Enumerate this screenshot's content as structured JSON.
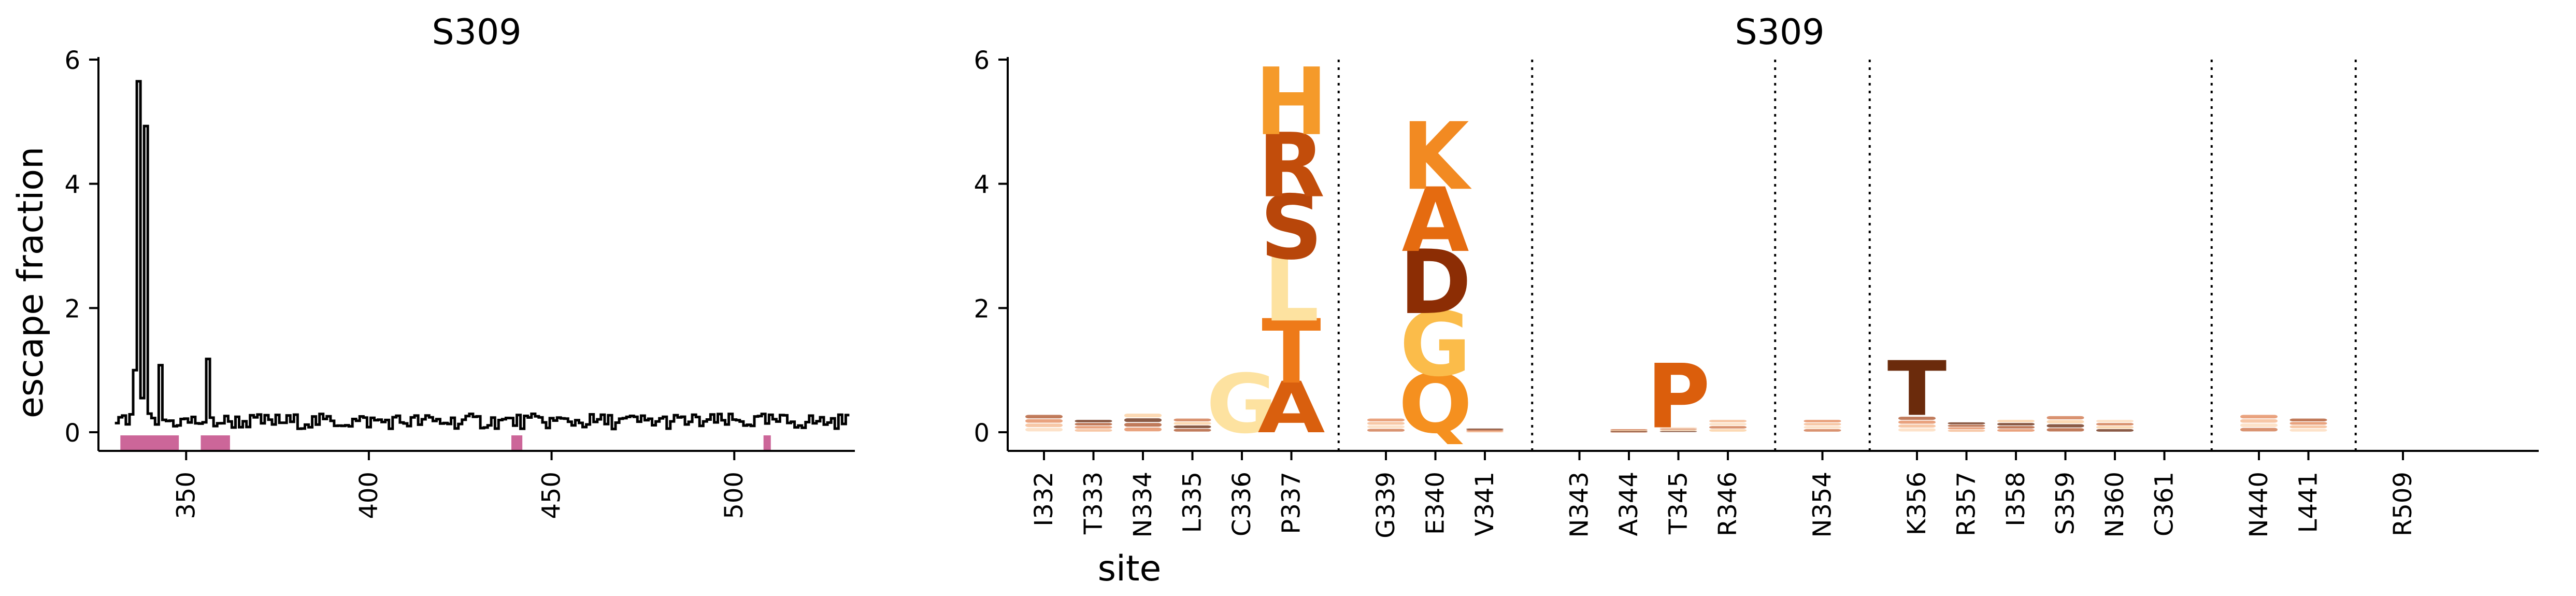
{
  "chart_data": [
    {
      "type": "line",
      "title": "S309",
      "xlabel": "",
      "ylabel": "escape fraction",
      "xlim": [
        326,
        533
      ],
      "ylim": [
        -0.3,
        6
      ],
      "xticks": [
        350,
        400,
        450,
        500
      ],
      "yticks": [
        0,
        2,
        4,
        6
      ],
      "grid": false,
      "peaks": [
        {
          "x": 336,
          "y": 1.0
        },
        {
          "x": 337,
          "y": 5.65
        },
        {
          "x": 338,
          "y": 0.55
        },
        {
          "x": 339,
          "y": 4.93
        },
        {
          "x": 340,
          "y": 0.3
        },
        {
          "x": 343,
          "y": 1.08
        },
        {
          "x": 344,
          "y": 0.2
        },
        {
          "x": 356,
          "y": 1.18
        }
      ],
      "baseline_range": [
        0.05,
        0.3
      ],
      "highlight_sites": [
        {
          "start": 332,
          "end": 348,
          "color": "#cc6699"
        },
        {
          "start": 354,
          "end": 362,
          "color": "#cc6699"
        },
        {
          "start": 439,
          "end": 442,
          "color": "#cc6699"
        },
        {
          "start": 508,
          "end": 510,
          "color": "#cc6699"
        }
      ],
      "line_color": "#000000"
    },
    {
      "type": "logo",
      "title": "S309",
      "xlabel": "site",
      "ylabel": "",
      "ylim": [
        -0.3,
        6
      ],
      "yticks": [
        0,
        2,
        4,
        6
      ],
      "sites": [
        "I332",
        "T333",
        "N334",
        "L335",
        "C336",
        "P337",
        "G339",
        "E340",
        "V341",
        "N343",
        "A344",
        "T345",
        "R346",
        "N354",
        "K356",
        "R357",
        "I358",
        "S359",
        "N360",
        "C361",
        "N440",
        "L441",
        "R509"
      ],
      "group_breaks_after": [
        "P337",
        "V341",
        "R346",
        "N354",
        "C361",
        "L441"
      ],
      "letters": [
        {
          "site": "C336",
          "letter": "G",
          "height": 0.92,
          "color": "#fde2a0"
        },
        {
          "site": "P337",
          "letter": "A",
          "height": 0.8,
          "color": "#d95f0e"
        },
        {
          "site": "P337",
          "letter": "T",
          "height": 1.0,
          "color": "#ee7a19"
        },
        {
          "site": "P337",
          "letter": "L",
          "height": 1.0,
          "color": "#fde2a0"
        },
        {
          "site": "P337",
          "letter": "S",
          "height": 1.0,
          "color": "#b8460a"
        },
        {
          "site": "P337",
          "letter": "R",
          "height": 1.0,
          "color": "#c24d0b"
        },
        {
          "site": "P337",
          "letter": "H",
          "height": 1.05,
          "color": "#f59a2a"
        },
        {
          "site": "E340",
          "letter": "Q",
          "height": 0.92,
          "color": "#f5901f"
        },
        {
          "site": "E340",
          "letter": "G",
          "height": 1.0,
          "color": "#fbbc4a"
        },
        {
          "site": "E340",
          "letter": "D",
          "height": 1.0,
          "color": "#8c2d04"
        },
        {
          "site": "E340",
          "letter": "A",
          "height": 1.0,
          "color": "#e56b10"
        },
        {
          "site": "E340",
          "letter": "K",
          "height": 1.05,
          "color": "#f28a22"
        },
        {
          "site": "T345",
          "letter": "P",
          "height": 1.0,
          "color": "#db5e0c"
        },
        {
          "site": "K356",
          "letter": "T",
          "height": 0.85,
          "color": "#6b2b0c"
        }
      ],
      "small_stack_heights": {
        "I332": 0.28,
        "T333": 0.2,
        "N334": 0.3,
        "L335": 0.22,
        "C336": 0.0,
        "P337": 0.0,
        "G339": 0.22,
        "E340": 0.0,
        "V341": 0.06,
        "N343": 0.0,
        "A344": 0.05,
        "T345": 0.08,
        "R346": 0.2,
        "N354": 0.2,
        "K356": 0.25,
        "R357": 0.16,
        "I358": 0.2,
        "S359": 0.26,
        "N360": 0.2,
        "C361": 0.0,
        "N440": 0.28,
        "L441": 0.22,
        "R509": 0.0
      },
      "small_stack_colors": [
        "#fde2c9",
        "#f7c7a6",
        "#e9a27e",
        "#c07a5a",
        "#8a5a45",
        "#fcd9b4",
        "#d99270"
      ]
    }
  ]
}
